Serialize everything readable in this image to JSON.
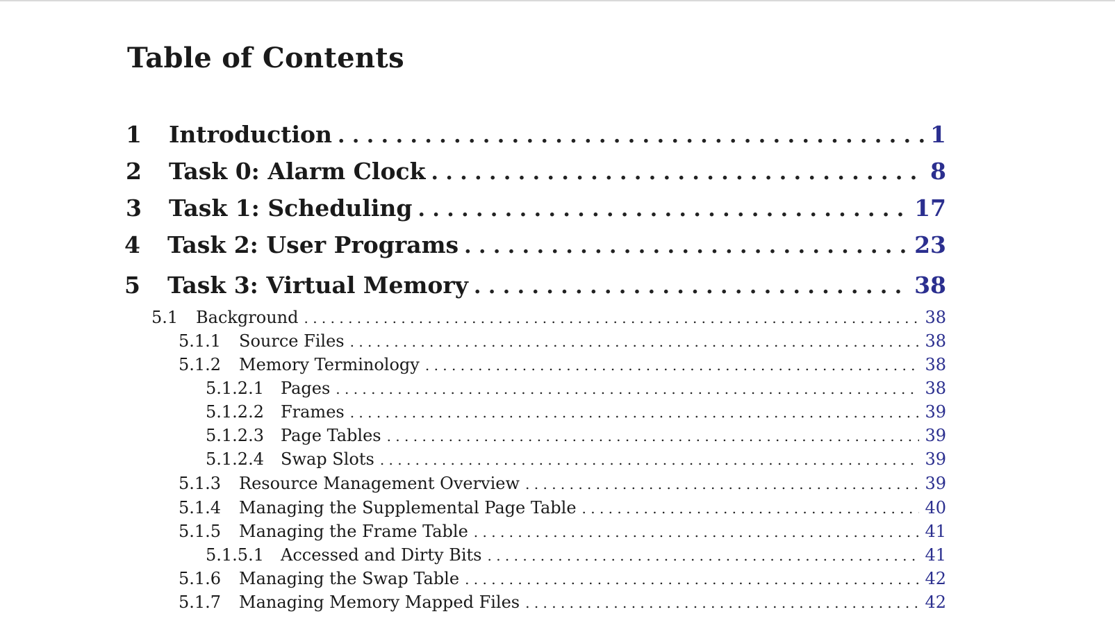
{
  "title": "Table of Contents",
  "chapters": [
    {
      "num": "1",
      "label": "Introduction",
      "page": "1"
    },
    {
      "num": "2",
      "label": "Task 0: Alarm Clock",
      "page": "8"
    },
    {
      "num": "3",
      "label": "Task 1: Scheduling",
      "page": "17"
    },
    {
      "num": "4",
      "label": "Task 2: User Programs",
      "page": "23"
    },
    {
      "num": "5",
      "label": "Task 3: Virtual Memory",
      "page": "38"
    }
  ],
  "sections": [
    {
      "num": "5.1",
      "label": "Background",
      "page": "38",
      "level": 1
    },
    {
      "num": "5.1.1",
      "label": "Source Files",
      "page": "38",
      "level": 2
    },
    {
      "num": "5.1.2",
      "label": "Memory Terminology",
      "page": "38",
      "level": 2
    },
    {
      "num": "5.1.2.1",
      "label": "Pages",
      "page": "38",
      "level": 3
    },
    {
      "num": "5.1.2.2",
      "label": "Frames",
      "page": "39",
      "level": 3
    },
    {
      "num": "5.1.2.3",
      "label": "Page Tables",
      "page": "39",
      "level": 3
    },
    {
      "num": "5.1.2.4",
      "label": "Swap Slots",
      "page": "39",
      "level": 3
    },
    {
      "num": "5.1.3",
      "label": "Resource Management Overview",
      "page": "39",
      "level": 2
    },
    {
      "num": "5.1.4",
      "label": "Managing the Supplemental Page Table",
      "page": "40",
      "level": 2
    },
    {
      "num": "5.1.5",
      "label": "Managing the Frame Table",
      "page": "41",
      "level": 2
    },
    {
      "num": "5.1.5.1",
      "label": "Accessed and Dirty Bits",
      "page": "41",
      "level": 3
    },
    {
      "num": "5.1.6",
      "label": "Managing the Swap Table",
      "page": "42",
      "level": 2
    },
    {
      "num": "5.1.7",
      "label": "Managing Memory Mapped Files",
      "page": "42",
      "level": 2
    }
  ],
  "colors": {
    "page_number": "#2b2f8f",
    "text": "#1a1a1a"
  }
}
